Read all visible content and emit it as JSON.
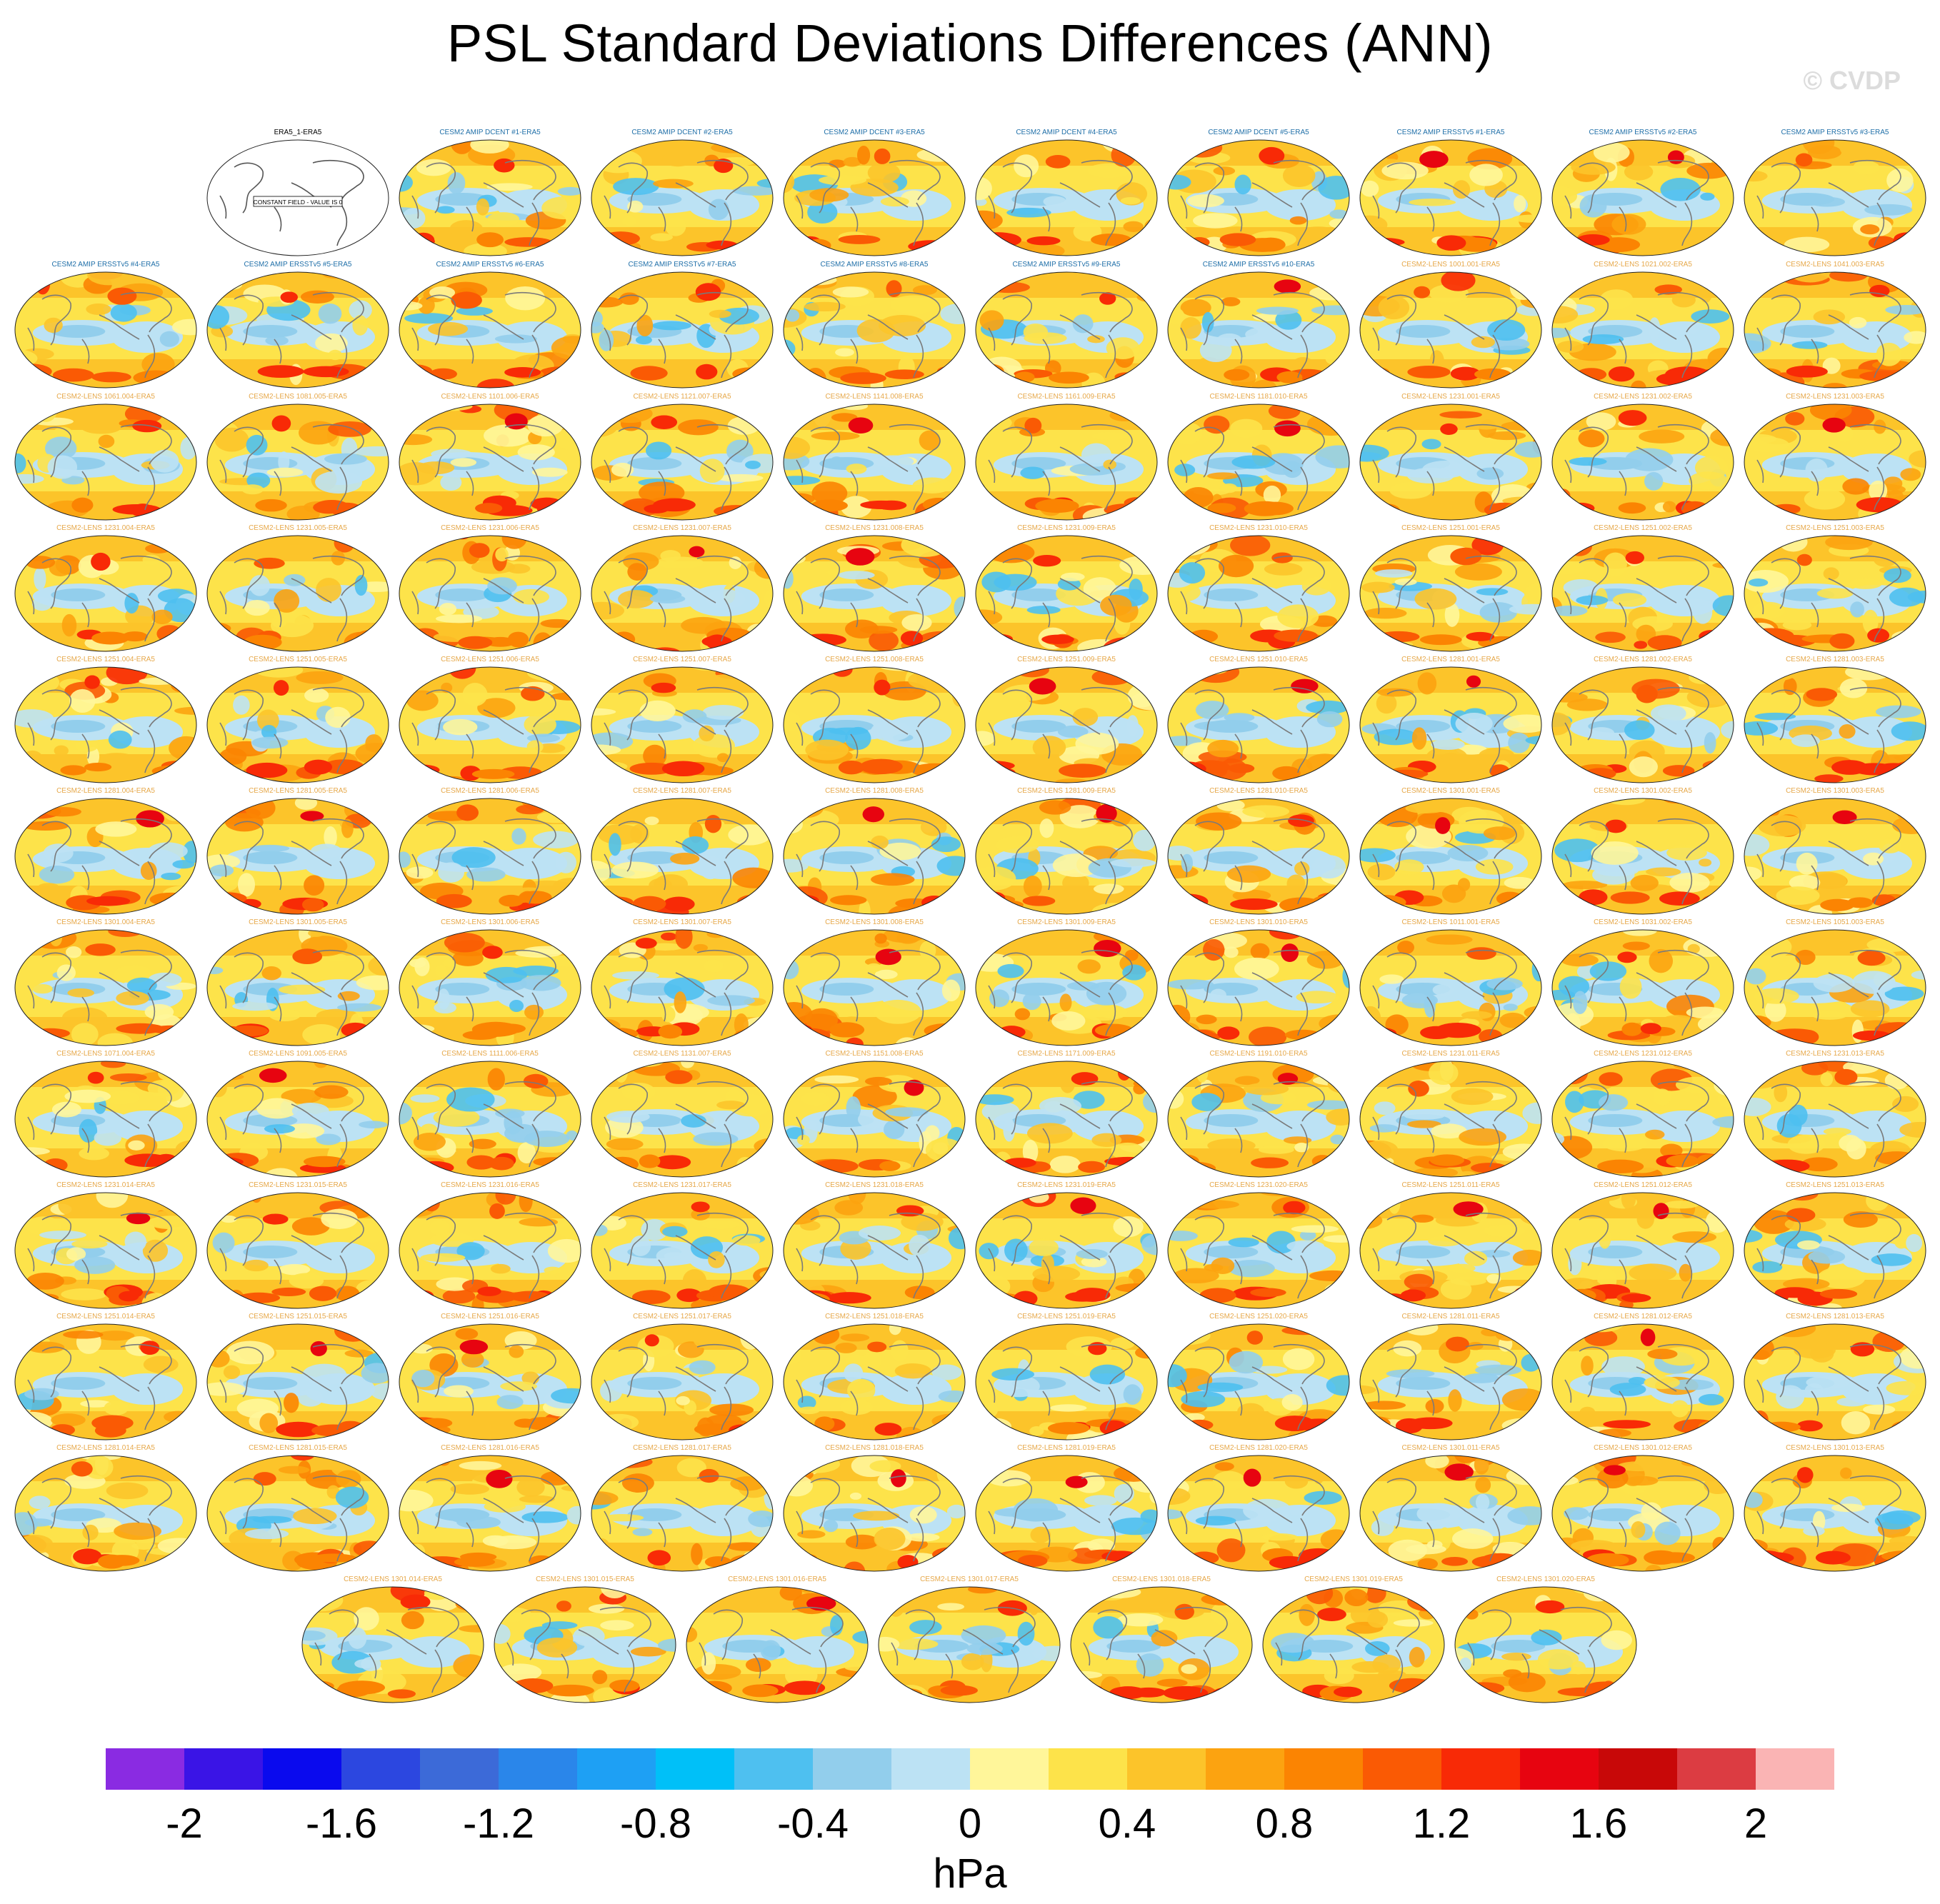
{
  "chart_data": {
    "type": "heatmap",
    "title": "PSL Standard Deviations Differences (ANN)",
    "watermark": "© CVDP",
    "units": "hPa",
    "colorbar": {
      "ticks": [
        "-2",
        "-1.6",
        "-1.2",
        "-0.8",
        "-0.4",
        "0",
        "0.4",
        "0.8",
        "1.2",
        "1.6",
        "2"
      ],
      "colors": [
        "#8a2be2",
        "#3a14e6",
        "#0a0aee",
        "#2c47e0",
        "#3c6ad8",
        "#2a86ea",
        "#1ea0f4",
        "#00c0f8",
        "#4ec0f0",
        "#92ceec",
        "#bce2f4",
        "#fff69a",
        "#fde34a",
        "#fcc42a",
        "#fca310",
        "#fb8402",
        "#fa5a04",
        "#f82a06",
        "#e70410",
        "#c80808",
        "#dc3c42",
        "#fab4b4"
      ]
    },
    "panels": [
      {
        "title": "ERA5_1-ERA5",
        "constant": true,
        "note": "CONSTANT FIELD - VALUE IS 0"
      },
      {
        "title": "CESM2 AMIP DCENT #1-ERA5"
      },
      {
        "title": "CESM2 AMIP DCENT #2-ERA5"
      },
      {
        "title": "CESM2 AMIP DCENT #3-ERA5"
      },
      {
        "title": "CESM2 AMIP DCENT #4-ERA5"
      },
      {
        "title": "CESM2 AMIP DCENT #5-ERA5"
      },
      {
        "title": "CESM2 AMIP ERSSTv5 #1-ERA5"
      },
      {
        "title": "CESM2 AMIP ERSSTv5 #2-ERA5"
      },
      {
        "title": "CESM2 AMIP ERSSTv5 #3-ERA5"
      },
      {
        "title": "CESM2 AMIP ERSSTv5 #4-ERA5"
      },
      {
        "title": "CESM2 AMIP ERSSTv5 #5-ERA5"
      },
      {
        "title": "CESM2 AMIP ERSSTv5 #6-ERA5"
      },
      {
        "title": "CESM2 AMIP ERSSTv5 #7-ERA5"
      },
      {
        "title": "CESM2 AMIP ERSSTv5 #8-ERA5"
      },
      {
        "title": "CESM2 AMIP ERSSTv5 #9-ERA5"
      },
      {
        "title": "CESM2 AMIP ERSSTv5 #10-ERA5"
      },
      {
        "title": "CESM2-LENS 1001.001-ERA5"
      },
      {
        "title": "CESM2-LENS 1021.002-ERA5"
      },
      {
        "title": "CESM2-LENS 1041.003-ERA5"
      },
      {
        "title": "CESM2-LENS 1061.004-ERA5"
      },
      {
        "title": "CESM2-LENS 1081.005-ERA5"
      },
      {
        "title": "CESM2-LENS 1101.006-ERA5"
      },
      {
        "title": "CESM2-LENS 1121.007-ERA5"
      },
      {
        "title": "CESM2-LENS 1141.008-ERA5"
      },
      {
        "title": "CESM2-LENS 1161.009-ERA5"
      },
      {
        "title": "CESM2-LENS 1181.010-ERA5"
      },
      {
        "title": "CESM2-LENS 1231.001-ERA5"
      },
      {
        "title": "CESM2-LENS 1231.002-ERA5"
      },
      {
        "title": "CESM2-LENS 1231.003-ERA5"
      },
      {
        "title": "CESM2-LENS 1231.004-ERA5"
      },
      {
        "title": "CESM2-LENS 1231.005-ERA5"
      },
      {
        "title": "CESM2-LENS 1231.006-ERA5"
      },
      {
        "title": "CESM2-LENS 1231.007-ERA5"
      },
      {
        "title": "CESM2-LENS 1231.008-ERA5"
      },
      {
        "title": "CESM2-LENS 1231.009-ERA5"
      },
      {
        "title": "CESM2-LENS 1231.010-ERA5"
      },
      {
        "title": "CESM2-LENS 1251.001-ERA5"
      },
      {
        "title": "CESM2-LENS 1251.002-ERA5"
      },
      {
        "title": "CESM2-LENS 1251.003-ERA5"
      },
      {
        "title": "CESM2-LENS 1251.004-ERA5"
      },
      {
        "title": "CESM2-LENS 1251.005-ERA5"
      },
      {
        "title": "CESM2-LENS 1251.006-ERA5"
      },
      {
        "title": "CESM2-LENS 1251.007-ERA5"
      },
      {
        "title": "CESM2-LENS 1251.008-ERA5"
      },
      {
        "title": "CESM2-LENS 1251.009-ERA5"
      },
      {
        "title": "CESM2-LENS 1251.010-ERA5"
      },
      {
        "title": "CESM2-LENS 1281.001-ERA5"
      },
      {
        "title": "CESM2-LENS 1281.002-ERA5"
      },
      {
        "title": "CESM2-LENS 1281.003-ERA5"
      },
      {
        "title": "CESM2-LENS 1281.004-ERA5"
      },
      {
        "title": "CESM2-LENS 1281.005-ERA5"
      },
      {
        "title": "CESM2-LENS 1281.006-ERA5"
      },
      {
        "title": "CESM2-LENS 1281.007-ERA5"
      },
      {
        "title": "CESM2-LENS 1281.008-ERA5"
      },
      {
        "title": "CESM2-LENS 1281.009-ERA5"
      },
      {
        "title": "CESM2-LENS 1281.010-ERA5"
      },
      {
        "title": "CESM2-LENS 1301.001-ERA5"
      },
      {
        "title": "CESM2-LENS 1301.002-ERA5"
      },
      {
        "title": "CESM2-LENS 1301.003-ERA5"
      },
      {
        "title": "CESM2-LENS 1301.004-ERA5"
      },
      {
        "title": "CESM2-LENS 1301.005-ERA5"
      },
      {
        "title": "CESM2-LENS 1301.006-ERA5"
      },
      {
        "title": "CESM2-LENS 1301.007-ERA5"
      },
      {
        "title": "CESM2-LENS 1301.008-ERA5"
      },
      {
        "title": "CESM2-LENS 1301.009-ERA5"
      },
      {
        "title": "CESM2-LENS 1301.010-ERA5"
      },
      {
        "title": "CESM2-LENS 1011.001-ERA5"
      },
      {
        "title": "CESM2-LENS 1031.002-ERA5"
      },
      {
        "title": "CESM2-LENS 1051.003-ERA5"
      },
      {
        "title": "CESM2-LENS 1071.004-ERA5"
      },
      {
        "title": "CESM2-LENS 1091.005-ERA5"
      },
      {
        "title": "CESM2-LENS 1111.006-ERA5"
      },
      {
        "title": "CESM2-LENS 1131.007-ERA5"
      },
      {
        "title": "CESM2-LENS 1151.008-ERA5"
      },
      {
        "title": "CESM2-LENS 1171.009-ERA5"
      },
      {
        "title": "CESM2-LENS 1191.010-ERA5"
      },
      {
        "title": "CESM2-LENS 1231.011-ERA5"
      },
      {
        "title": "CESM2-LENS 1231.012-ERA5"
      },
      {
        "title": "CESM2-LENS 1231.013-ERA5"
      },
      {
        "title": "CESM2-LENS 1231.014-ERA5"
      },
      {
        "title": "CESM2-LENS 1231.015-ERA5"
      },
      {
        "title": "CESM2-LENS 1231.016-ERA5"
      },
      {
        "title": "CESM2-LENS 1231.017-ERA5"
      },
      {
        "title": "CESM2-LENS 1231.018-ERA5"
      },
      {
        "title": "CESM2-LENS 1231.019-ERA5"
      },
      {
        "title": "CESM2-LENS 1231.020-ERA5"
      },
      {
        "title": "CESM2-LENS 1251.011-ERA5"
      },
      {
        "title": "CESM2-LENS 1251.012-ERA5"
      },
      {
        "title": "CESM2-LENS 1251.013-ERA5"
      },
      {
        "title": "CESM2-LENS 1251.014-ERA5"
      },
      {
        "title": "CESM2-LENS 1251.015-ERA5"
      },
      {
        "title": "CESM2-LENS 1251.016-ERA5"
      },
      {
        "title": "CESM2-LENS 1251.017-ERA5"
      },
      {
        "title": "CESM2-LENS 1251.018-ERA5"
      },
      {
        "title": "CESM2-LENS 1251.019-ERA5"
      },
      {
        "title": "CESM2-LENS 1251.020-ERA5"
      },
      {
        "title": "CESM2-LENS 1281.011-ERA5"
      },
      {
        "title": "CESM2-LENS 1281.012-ERA5"
      },
      {
        "title": "CESM2-LENS 1281.013-ERA5"
      },
      {
        "title": "CESM2-LENS 1281.014-ERA5"
      },
      {
        "title": "CESM2-LENS 1281.015-ERA5"
      },
      {
        "title": "CESM2-LENS 1281.016-ERA5"
      },
      {
        "title": "CESM2-LENS 1281.017-ERA5"
      },
      {
        "title": "CESM2-LENS 1281.018-ERA5"
      },
      {
        "title": "CESM2-LENS 1281.019-ERA5"
      },
      {
        "title": "CESM2-LENS 1281.020-ERA5"
      },
      {
        "title": "CESM2-LENS 1301.011-ERA5"
      },
      {
        "title": "CESM2-LENS 1301.012-ERA5"
      },
      {
        "title": "CESM2-LENS 1301.013-ERA5"
      },
      {
        "title": "CESM2-LENS 1301.014-ERA5"
      },
      {
        "title": "CESM2-LENS 1301.015-ERA5"
      },
      {
        "title": "CESM2-LENS 1301.016-ERA5"
      },
      {
        "title": "CESM2-LENS 1301.017-ERA5"
      },
      {
        "title": "CESM2-LENS 1301.018-ERA5"
      },
      {
        "title": "CESM2-LENS 1301.019-ERA5"
      },
      {
        "title": "CESM2-LENS 1301.020-ERA5"
      }
    ],
    "group_colors": {
      "ERA5": "#000000",
      "CESM2 AMIP DCENT": "#1f6fa8",
      "CESM2 AMIP ERSSTv5": "#1f6fa8",
      "CESM2-LENS": "#e6a84a"
    }
  }
}
